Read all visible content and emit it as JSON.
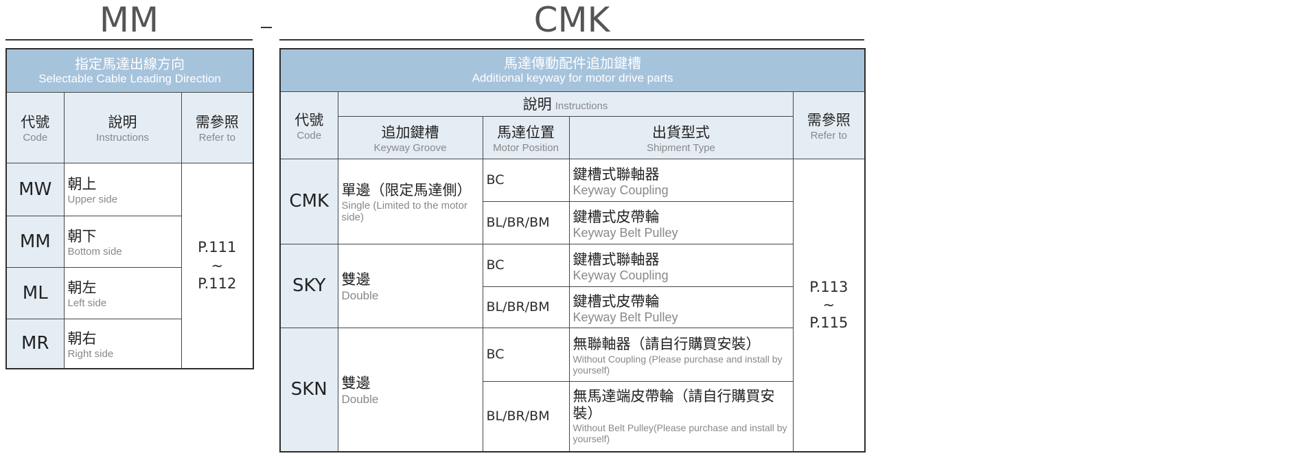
{
  "mm": {
    "title": "MM",
    "header_zh": "指定馬達出線方向",
    "header_en": "Selectable Cable Leading Direction",
    "cols": [
      {
        "zh": "代號",
        "en": "Code"
      },
      {
        "zh": "說明",
        "en": "Instructions"
      },
      {
        "zh": "需參照",
        "en": "Refer to"
      }
    ],
    "rows": [
      {
        "code": "MW",
        "zh": "朝上",
        "en": "Upper side"
      },
      {
        "code": "MM",
        "zh": "朝下",
        "en": "Bottom side"
      },
      {
        "code": "ML",
        "zh": "朝左",
        "en": "Left side"
      },
      {
        "code": "MR",
        "zh": "朝右",
        "en": "Right side"
      }
    ],
    "ref": {
      "from": "P.111",
      "sep": "~",
      "to": "P.112"
    }
  },
  "separator": "–",
  "cmk": {
    "title": "CMK",
    "header_zh": "馬達傳動配件追加鍵槽",
    "header_en": "Additional keyway for motor drive parts",
    "code": {
      "zh": "代號",
      "en": "Code"
    },
    "instr": {
      "zh": "說明",
      "en": "Instructions"
    },
    "refer": {
      "zh": "需參照",
      "en": "Refer to"
    },
    "sub": [
      {
        "zh": "追加鍵槽",
        "en": "Keyway Groove"
      },
      {
        "zh": "馬達位置",
        "en": "Motor Position"
      },
      {
        "zh": "出貨型式",
        "en": "Shipment Type"
      }
    ],
    "groups": [
      {
        "code": "CMK",
        "zh": "單邊（限定馬達側）",
        "en": "Single (Limited to the motor side)",
        "rows": [
          {
            "pos": "BC",
            "zh": "鍵槽式聯軸器",
            "en": "Keyway Coupling"
          },
          {
            "pos": "BL/BR/BM",
            "zh": "鍵槽式皮帶輪",
            "en": "Keyway Belt Pulley"
          }
        ]
      },
      {
        "code": "SKY",
        "zh": "雙邊",
        "en": "Double",
        "rows": [
          {
            "pos": "BC",
            "zh": "鍵槽式聯軸器",
            "en": "Keyway Coupling"
          },
          {
            "pos": "BL/BR/BM",
            "zh": "鍵槽式皮帶輪",
            "en": "Keyway Belt Pulley"
          }
        ]
      },
      {
        "code": "SKN",
        "zh": "雙邊",
        "en": "Double",
        "rows": [
          {
            "pos": "BC",
            "zh": "無聯軸器（請自行購買安裝）",
            "en": "Without Coupling (Please purchase and install by yourself)"
          },
          {
            "pos": "BL/BR/BM",
            "zh": "無馬達端皮帶輪（請自行購買安裝）",
            "en": "Without Belt Pulley(Please purchase and install by yourself)"
          }
        ]
      }
    ],
    "ref": {
      "from": "P.113",
      "sep": "~",
      "to": "P.115"
    }
  }
}
